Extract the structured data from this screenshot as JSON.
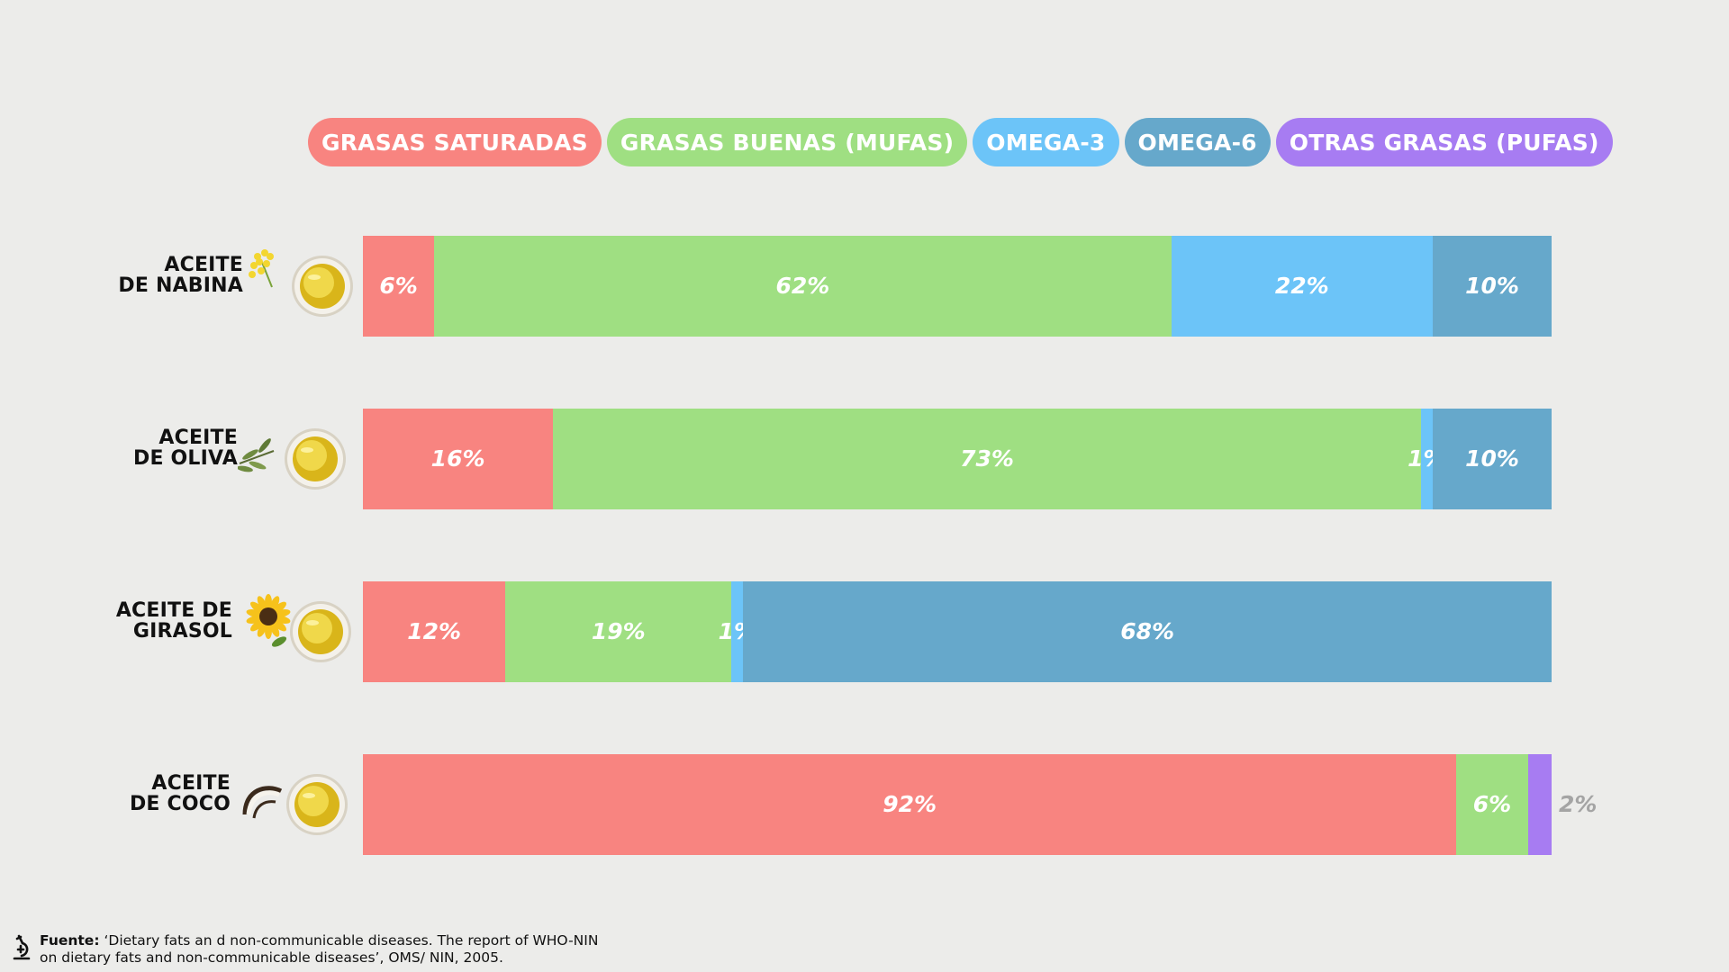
{
  "colors": {
    "saturated": "#f88480",
    "mufa": "#9fdf82",
    "omega3": "#6cc4f8",
    "omega6": "#66a8cb",
    "pufa": "#a77cf2"
  },
  "legend": [
    {
      "label": "GRASAS SATURADAS",
      "color": "#f88480"
    },
    {
      "label": "GRASAS BUENAS (MUFAS)",
      "color": "#9fdf82"
    },
    {
      "label": "OMEGA-3",
      "color": "#6cc4f8"
    },
    {
      "label": "OMEGA-6",
      "color": "#66a8cb"
    },
    {
      "label": "OTRAS GRASAS (PUFAS)",
      "color": "#a77cf2"
    }
  ],
  "chart_data": {
    "type": "bar",
    "orientation": "horizontal",
    "stacked": true,
    "categories": [
      {
        "line1": "ACEITE",
        "line2": "DE NABINA",
        "icon": "rapeseed-flower-oil-icon"
      },
      {
        "line1": "ACEITE",
        "line2": "DE OLIVA",
        "icon": "olive-branch-oil-icon"
      },
      {
        "line1": "ACEITE DE",
        "line2": "GIRASOL",
        "icon": "sunflower-oil-icon"
      },
      {
        "line1": "ACEITE",
        "line2": "DE COCO",
        "icon": "coconut-oil-icon"
      }
    ],
    "series": [
      {
        "name": "GRASAS SATURADAS",
        "color": "#f88480",
        "values": [
          6,
          16,
          12,
          92
        ],
        "labels": [
          "6%",
          "16%",
          "12%",
          "92%"
        ]
      },
      {
        "name": "GRASAS BUENAS (MUFAS)",
        "color": "#9fdf82",
        "values": [
          62,
          73,
          19,
          6
        ],
        "labels": [
          "62%",
          "73%",
          "19%",
          "6%"
        ]
      },
      {
        "name": "OMEGA-3",
        "color": "#6cc4f8",
        "values": [
          22,
          1,
          1,
          0
        ],
        "labels": [
          "22%",
          "1%",
          "1%",
          ""
        ]
      },
      {
        "name": "OMEGA-6",
        "color": "#66a8cb",
        "values": [
          10,
          10,
          68,
          0
        ],
        "labels": [
          "10%",
          "10%",
          "68%",
          ""
        ]
      },
      {
        "name": "OTRAS GRASAS (PUFAS)",
        "color": "#a77cf2",
        "values": [
          0,
          0,
          0,
          2
        ],
        "labels": [
          "",
          "",
          "",
          "2%"
        ]
      }
    ],
    "xlim": [
      0,
      100
    ],
    "grid": false,
    "legend_position": "top"
  },
  "source": {
    "prefix": "Fuente:",
    "line1": " ‘Dietary fats an d non-communicable diseases. The report of WHO-NIN",
    "line2": "on dietary fats and non-communicable diseases’, OMS/ NIN, 2005."
  }
}
